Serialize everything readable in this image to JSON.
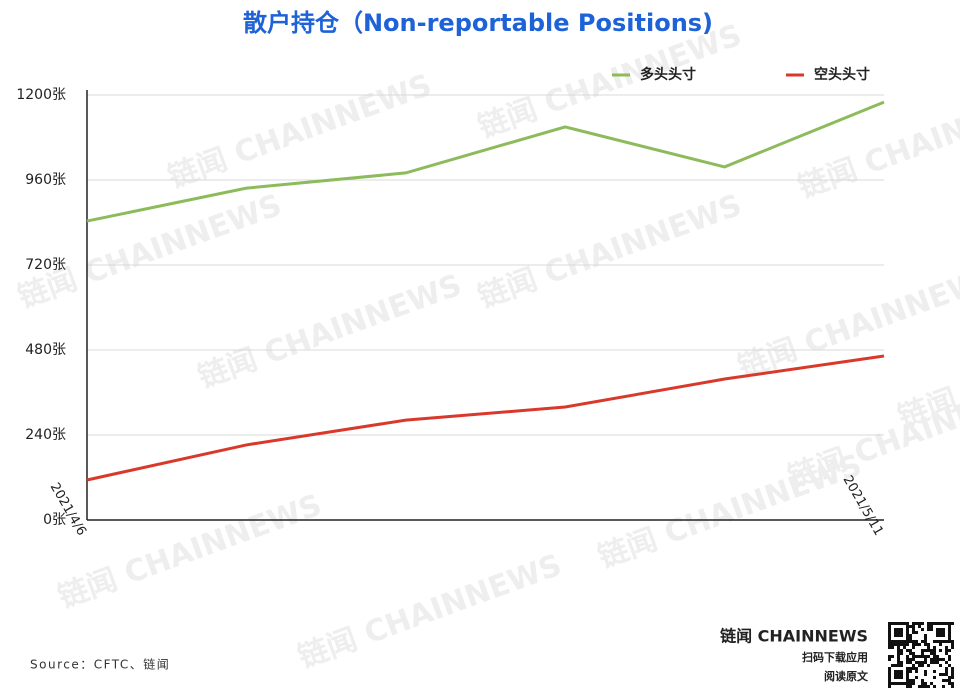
{
  "chart_data": {
    "type": "line",
    "title": "散户持仓（Non-reportable Positions)",
    "categories": [
      "2021/4/6",
      null,
      null,
      null,
      null,
      "2021/5/11"
    ],
    "series": [
      {
        "name": "多头头寸",
        "color": "#8dbb5c",
        "values": [
          844,
          937,
          980,
          1110,
          997,
          1180
        ]
      },
      {
        "name": "空头头寸",
        "color": "#d9392b",
        "values": [
          113,
          212,
          282,
          319,
          398,
          463
        ]
      }
    ],
    "ylim": [
      0,
      1200
    ],
    "yticks": [
      {
        "value": 0,
        "label": "0张"
      },
      {
        "value": 240,
        "label": "240张"
      },
      {
        "value": 480,
        "label": "480张"
      },
      {
        "value": 720,
        "label": "720张"
      },
      {
        "value": 960,
        "label": "960张"
      },
      {
        "value": 1200,
        "label": "1200张"
      }
    ],
    "grid": true,
    "legend": "top-right"
  },
  "source": "Source：CFTC、链闻",
  "watermark": "链闻 CHAINNEWS",
  "brand": {
    "name": "链闻 CHAINNEWS",
    "line1": "扫码下载应用",
    "line2": "阅读原文"
  }
}
